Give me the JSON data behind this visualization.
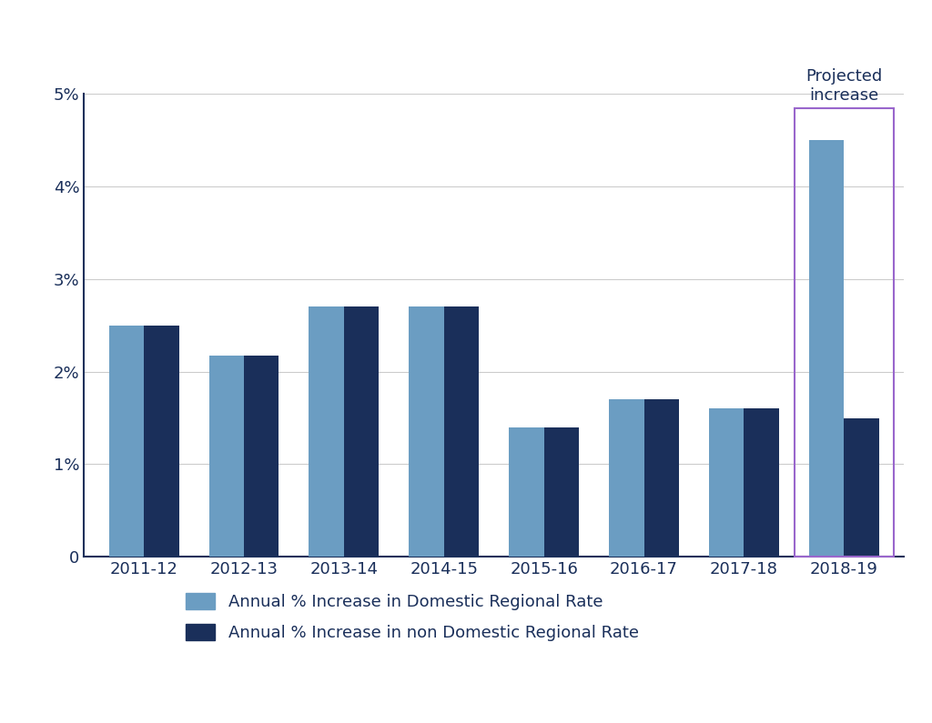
{
  "categories": [
    "2011-12",
    "2012-13",
    "2013-14",
    "2014-15",
    "2015-16",
    "2016-17",
    "2017-18",
    "2018-19"
  ],
  "domestic": [
    2.5,
    2.17,
    2.7,
    2.7,
    1.4,
    1.7,
    1.6,
    4.5
  ],
  "non_domestic": [
    2.5,
    2.17,
    2.7,
    2.7,
    1.4,
    1.7,
    1.6,
    1.5
  ],
  "domestic_color": "#6b9dc2",
  "non_domestic_color": "#1a2f5a",
  "background_color": "#ffffff",
  "ylim": [
    0,
    5.0
  ],
  "yticks": [
    0,
    1.0,
    2.0,
    3.0,
    4.0,
    5.0
  ],
  "ytick_labels": [
    "0",
    "1%",
    "2%",
    "3%",
    "4%",
    "5%"
  ],
  "legend_domestic": "Annual % Increase in Domestic Regional Rate",
  "legend_non_domestic": "Annual % Increase in non Domestic Regional Rate",
  "projected_label": "Projected\nincrease",
  "projected_box_color": "#9966cc",
  "bar_width": 0.35,
  "axis_color": "#1a2f5a",
  "tick_color": "#1a2f5a",
  "grid_color": "#cccccc"
}
